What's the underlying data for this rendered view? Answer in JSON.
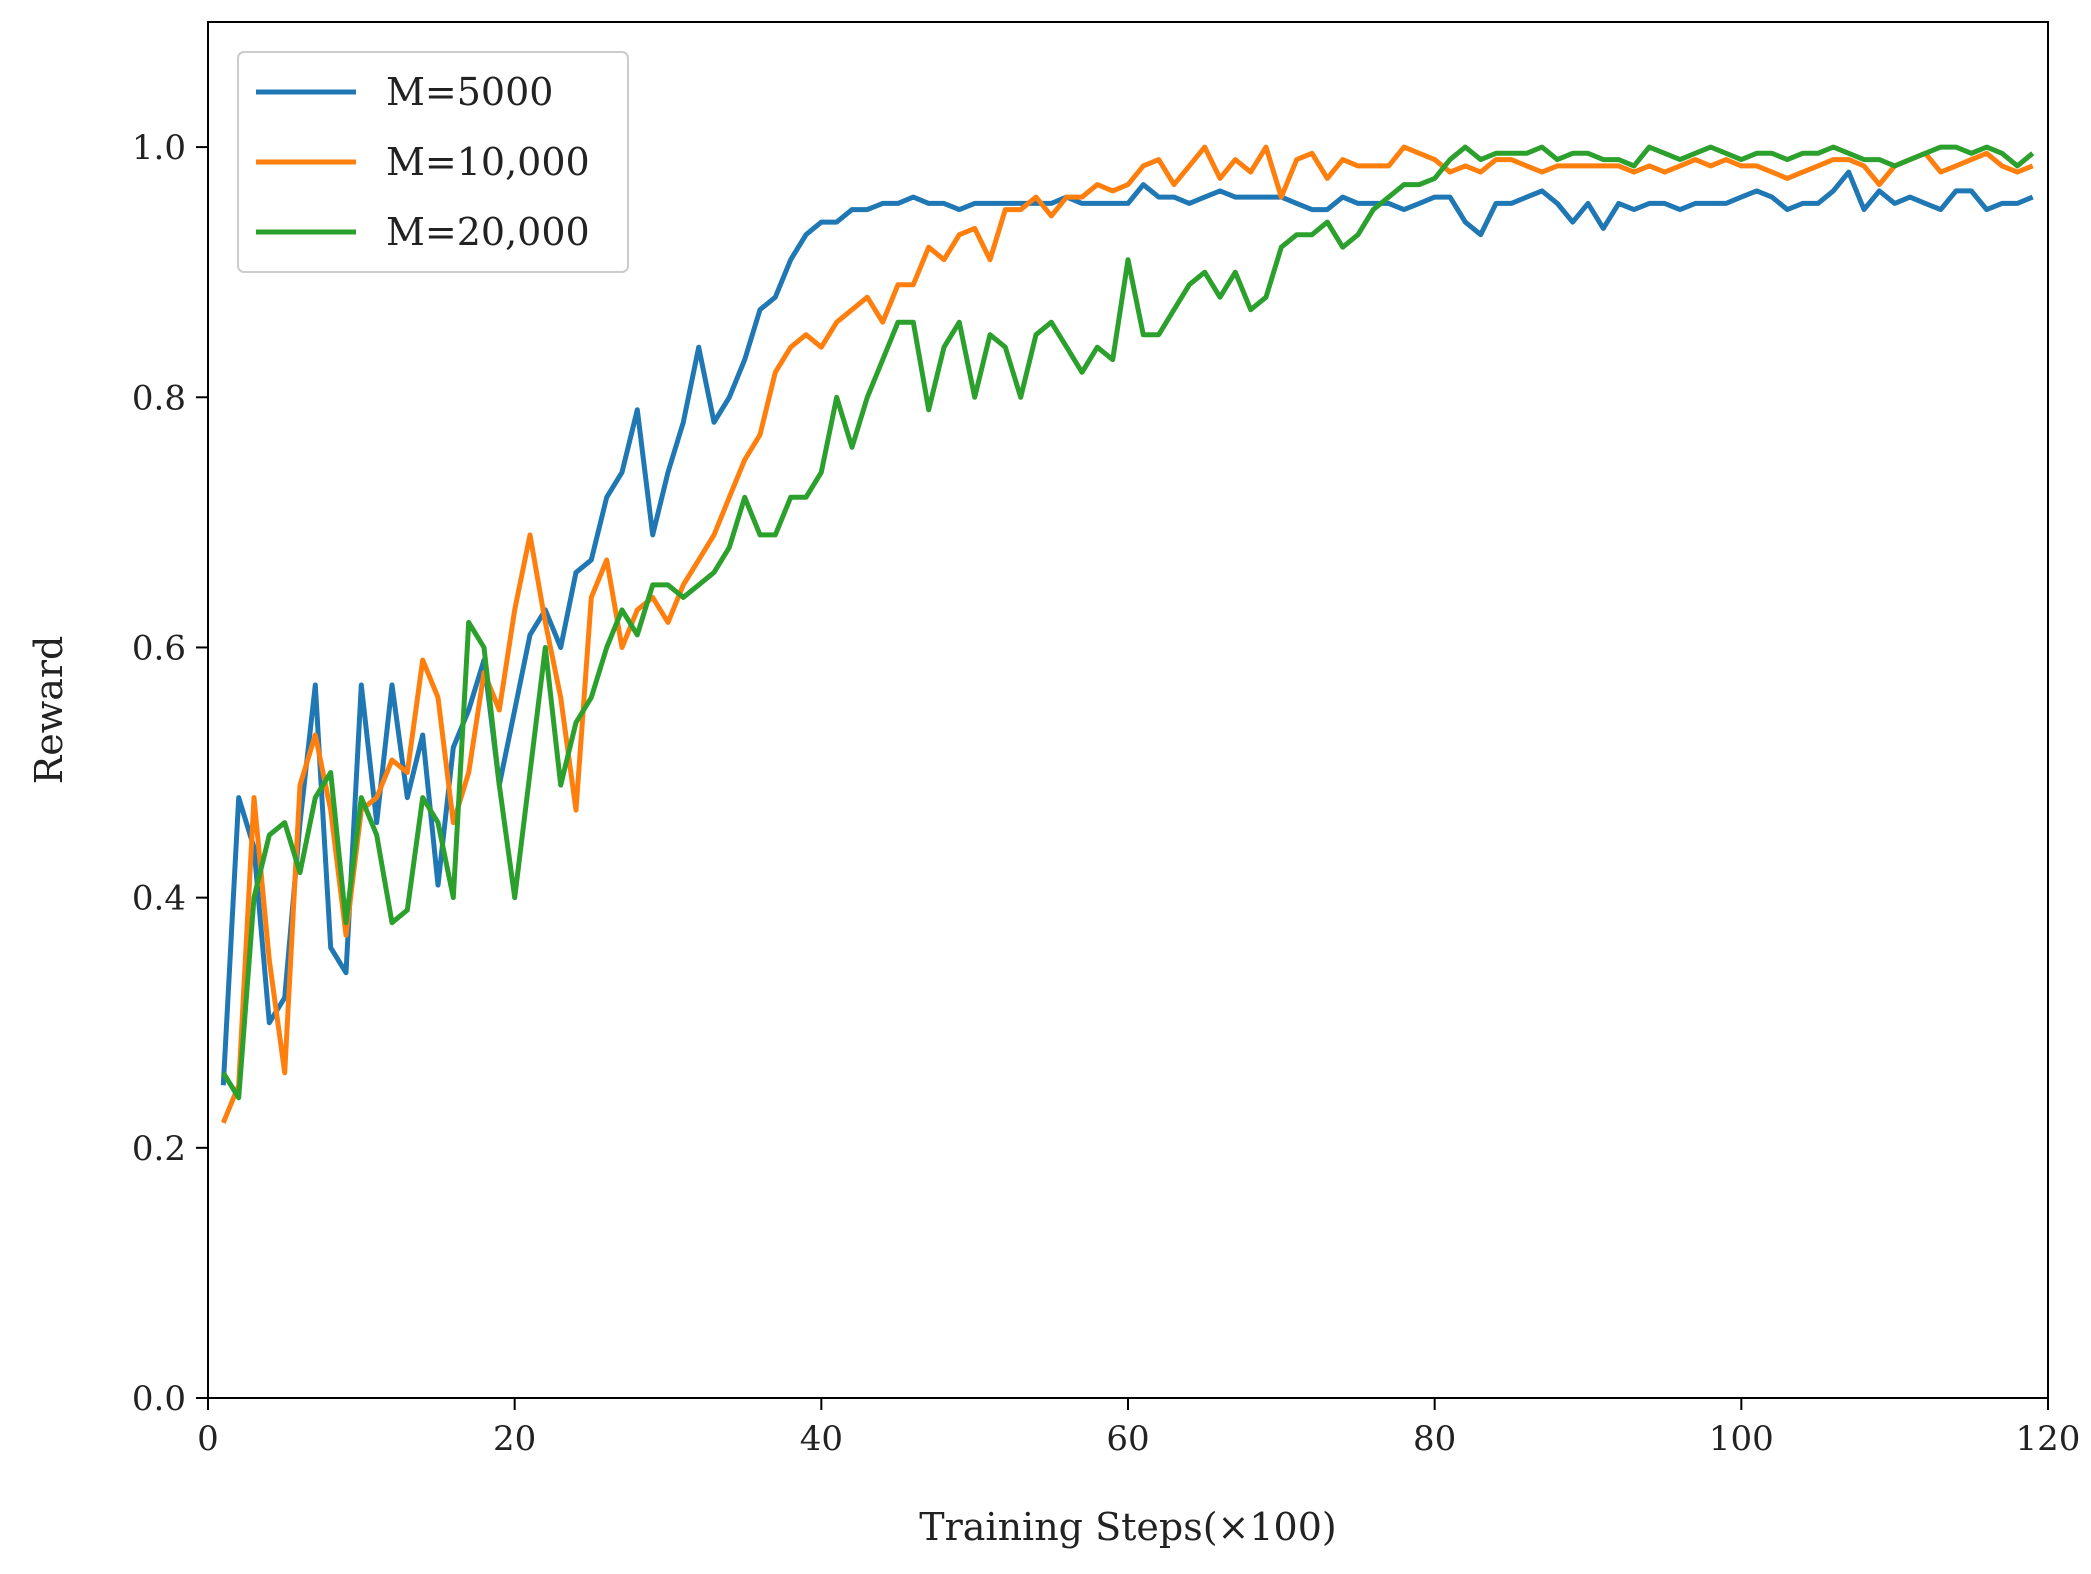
{
  "chart_data": {
    "type": "line",
    "xlabel": "Training Steps(×100)",
    "ylabel": "Reward",
    "xlim": [
      0,
      120
    ],
    "ylim": [
      0,
      1.1
    ],
    "xticks": [
      0,
      20,
      40,
      60,
      80,
      100,
      120
    ],
    "xtick_labels": [
      "0",
      "20",
      "40",
      "60",
      "80",
      "100",
      "120"
    ],
    "yticks": [
      0.0,
      0.2,
      0.4,
      0.6,
      0.8,
      1.0
    ],
    "ytick_labels": [
      "0.0",
      "0.2",
      "0.4",
      "0.6",
      "0.8",
      "1.0"
    ],
    "grid": false,
    "legend_position": "top-left",
    "x": [
      1,
      2,
      3,
      4,
      5,
      6,
      7,
      8,
      9,
      10,
      11,
      12,
      13,
      14,
      15,
      16,
      17,
      18,
      19,
      20,
      21,
      22,
      23,
      24,
      25,
      26,
      27,
      28,
      29,
      30,
      31,
      32,
      33,
      34,
      35,
      36,
      37,
      38,
      39,
      40,
      41,
      42,
      43,
      44,
      45,
      46,
      47,
      48,
      49,
      50,
      51,
      52,
      53,
      54,
      55,
      56,
      57,
      58,
      59,
      60,
      61,
      62,
      63,
      64,
      65,
      66,
      67,
      68,
      69,
      70,
      71,
      72,
      73,
      74,
      75,
      76,
      77,
      78,
      79,
      80,
      81,
      82,
      83,
      84,
      85,
      86,
      87,
      88,
      89,
      90,
      91,
      92,
      93,
      94,
      95,
      96,
      97,
      98,
      99,
      100,
      101,
      102,
      103,
      104,
      105,
      106,
      107,
      108,
      109,
      110,
      111,
      112,
      113,
      114,
      115,
      116,
      117,
      118,
      119
    ],
    "series": [
      {
        "name": "M=5000",
        "color": "#1f77b4",
        "values": [
          0.25,
          0.48,
          0.44,
          0.3,
          0.32,
          0.46,
          0.57,
          0.36,
          0.34,
          0.57,
          0.46,
          0.57,
          0.48,
          0.53,
          0.41,
          0.52,
          0.55,
          0.59,
          0.49,
          0.55,
          0.61,
          0.63,
          0.6,
          0.66,
          0.67,
          0.72,
          0.74,
          0.79,
          0.69,
          0.74,
          0.78,
          0.84,
          0.78,
          0.8,
          0.83,
          0.87,
          0.88,
          0.91,
          0.93,
          0.94,
          0.94,
          0.95,
          0.95,
          0.955,
          0.955,
          0.96,
          0.955,
          0.955,
          0.95,
          0.955,
          0.955,
          0.955,
          0.955,
          0.955,
          0.955,
          0.96,
          0.955,
          0.955,
          0.955,
          0.955,
          0.97,
          0.96,
          0.96,
          0.955,
          0.96,
          0.965,
          0.96,
          0.96,
          0.96,
          0.96,
          0.955,
          0.95,
          0.95,
          0.96,
          0.955,
          0.955,
          0.955,
          0.95,
          0.955,
          0.96,
          0.96,
          0.94,
          0.93,
          0.955,
          0.955,
          0.96,
          0.965,
          0.955,
          0.94,
          0.955,
          0.935,
          0.955,
          0.95,
          0.955,
          0.955,
          0.95,
          0.955,
          0.955,
          0.955,
          0.96,
          0.965,
          0.96,
          0.95,
          0.955,
          0.955,
          0.965,
          0.98,
          0.95,
          0.965,
          0.955,
          0.96,
          0.955,
          0.95,
          0.965,
          0.965,
          0.95,
          0.955,
          0.955,
          0.96
        ]
      },
      {
        "name": "M=10,000",
        "color": "#ff7f0e",
        "values": [
          0.22,
          0.25,
          0.48,
          0.35,
          0.26,
          0.49,
          0.53,
          0.47,
          0.37,
          0.47,
          0.48,
          0.51,
          0.5,
          0.59,
          0.56,
          0.46,
          0.5,
          0.58,
          0.55,
          0.63,
          0.69,
          0.62,
          0.56,
          0.47,
          0.64,
          0.67,
          0.6,
          0.63,
          0.64,
          0.62,
          0.65,
          0.67,
          0.69,
          0.72,
          0.75,
          0.77,
          0.82,
          0.84,
          0.85,
          0.84,
          0.86,
          0.87,
          0.88,
          0.86,
          0.89,
          0.89,
          0.92,
          0.91,
          0.93,
          0.935,
          0.91,
          0.95,
          0.95,
          0.96,
          0.945,
          0.96,
          0.96,
          0.97,
          0.965,
          0.97,
          0.985,
          0.99,
          0.97,
          0.985,
          1.0,
          0.975,
          0.99,
          0.98,
          1.0,
          0.96,
          0.99,
          0.995,
          0.975,
          0.99,
          0.985,
          0.985,
          0.985,
          1.0,
          0.995,
          0.99,
          0.98,
          0.985,
          0.98,
          0.99,
          0.99,
          0.985,
          0.98,
          0.985,
          0.985,
          0.985,
          0.985,
          0.985,
          0.98,
          0.985,
          0.98,
          0.985,
          0.99,
          0.985,
          0.99,
          0.985,
          0.985,
          0.98,
          0.975,
          0.98,
          0.985,
          0.99,
          0.99,
          0.985,
          0.97,
          0.985,
          0.99,
          0.995,
          0.98,
          0.985,
          0.99,
          0.995,
          0.985,
          0.98,
          0.985
        ]
      },
      {
        "name": "M=20,000",
        "color": "#2ca02c",
        "values": [
          0.26,
          0.24,
          0.4,
          0.45,
          0.46,
          0.42,
          0.48,
          0.5,
          0.38,
          0.48,
          0.45,
          0.38,
          0.39,
          0.48,
          0.46,
          0.4,
          0.62,
          0.6,
          0.49,
          0.4,
          0.5,
          0.6,
          0.49,
          0.54,
          0.56,
          0.6,
          0.63,
          0.61,
          0.65,
          0.65,
          0.64,
          0.65,
          0.66,
          0.68,
          0.72,
          0.69,
          0.69,
          0.72,
          0.72,
          0.74,
          0.8,
          0.76,
          0.8,
          0.83,
          0.86,
          0.86,
          0.79,
          0.84,
          0.86,
          0.8,
          0.85,
          0.84,
          0.8,
          0.85,
          0.86,
          0.84,
          0.82,
          0.84,
          0.83,
          0.91,
          0.85,
          0.85,
          0.87,
          0.89,
          0.9,
          0.88,
          0.9,
          0.87,
          0.88,
          0.92,
          0.93,
          0.93,
          0.94,
          0.92,
          0.93,
          0.95,
          0.96,
          0.97,
          0.97,
          0.975,
          0.99,
          1.0,
          0.99,
          0.995,
          0.995,
          0.995,
          1.0,
          0.99,
          0.995,
          0.995,
          0.99,
          0.99,
          0.985,
          1.0,
          0.995,
          0.99,
          0.995,
          1.0,
          0.995,
          0.99,
          0.995,
          0.995,
          0.99,
          0.995,
          0.995,
          1.0,
          0.995,
          0.99,
          0.99,
          0.985,
          0.99,
          0.995,
          1.0,
          1.0,
          0.995,
          1.0,
          0.995,
          0.985,
          0.995
        ]
      }
    ]
  }
}
